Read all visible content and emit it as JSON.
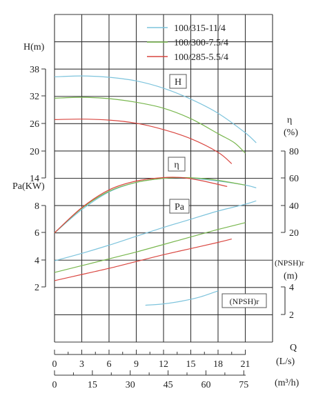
{
  "chart_data": {
    "type": "line",
    "legend": {
      "placement": "top-right",
      "entries": [
        {
          "name": "100/315-11/4",
          "color": "#7cc3dc"
        },
        {
          "name": "100/300-7.5/4",
          "color": "#77b64c"
        },
        {
          "name": "100/285-5.5/4",
          "color": "#d9453f"
        }
      ]
    },
    "grid": true,
    "x_axis": {
      "q_label": "Q",
      "ls_unit": "(L/s)",
      "m3h_unit": "(m³/h)",
      "ls_range": [
        0,
        22.5
      ],
      "ls_ticks": [
        "0",
        "3",
        "6",
        "9",
        "12",
        "15",
        "18",
        "21"
      ],
      "m3h_ticks": [
        "0",
        "15",
        "30",
        "45",
        "60",
        "75"
      ]
    },
    "head_axis": {
      "label": "H(m)",
      "ticks": [
        "38",
        "32",
        "26",
        "20",
        "14"
      ],
      "range": [
        14,
        38
      ]
    },
    "power_axis": {
      "label": "Pa(KW)",
      "ticks": [
        "8",
        "6",
        "4",
        "2"
      ],
      "range": [
        2,
        8
      ]
    },
    "eff_axis": {
      "symbol": "η",
      "unit": "(%)",
      "ticks": [
        "80",
        "60",
        "40",
        "20"
      ],
      "range": [
        20,
        80
      ]
    },
    "npsh_axis": {
      "label": "(NPSH)r",
      "unit": "(m)",
      "ticks": [
        "4",
        "2"
      ],
      "range": [
        2,
        4
      ]
    },
    "curve_labels": {
      "head": "H",
      "efficiency": "η",
      "power": "Pa",
      "npsh": "(NPSH)r"
    },
    "series": [
      {
        "name": "100/315-11/4",
        "color": "#7cc3dc",
        "head": [
          [
            0,
            36.3
          ],
          [
            3,
            36.5
          ],
          [
            6,
            36.2
          ],
          [
            9,
            35.4
          ],
          [
            12,
            33.8
          ],
          [
            15,
            31.4
          ],
          [
            18,
            28.3
          ],
          [
            21,
            24.0
          ],
          [
            22.2,
            21.8
          ]
        ],
        "efficiency": [
          [
            0,
            20
          ],
          [
            3,
            37
          ],
          [
            6,
            50
          ],
          [
            9,
            57
          ],
          [
            12,
            60
          ],
          [
            13.5,
            60.5
          ],
          [
            15,
            60
          ],
          [
            18,
            58
          ],
          [
            21,
            55
          ],
          [
            22.2,
            53
          ]
        ],
        "power": [
          [
            0,
            3.95
          ],
          [
            3,
            4.5
          ],
          [
            6,
            5.1
          ],
          [
            9,
            5.75
          ],
          [
            12,
            6.4
          ],
          [
            15,
            7.0
          ],
          [
            18,
            7.6
          ],
          [
            21,
            8.1
          ],
          [
            22.2,
            8.35
          ]
        ],
        "npsh": [
          [
            10,
            2.7
          ],
          [
            12,
            2.8
          ],
          [
            14,
            3.0
          ],
          [
            16,
            3.3
          ],
          [
            18,
            3.75
          ]
        ]
      },
      {
        "name": "100/300-7.5/4",
        "color": "#77b64c",
        "head": [
          [
            0,
            31.6
          ],
          [
            3,
            31.8
          ],
          [
            6,
            31.5
          ],
          [
            9,
            30.7
          ],
          [
            12,
            29.4
          ],
          [
            15,
            27.1
          ],
          [
            18,
            23.8
          ],
          [
            19.8,
            21.8
          ],
          [
            21,
            19.5
          ]
        ],
        "efficiency": [
          [
            0,
            20
          ],
          [
            3,
            38
          ],
          [
            6,
            50.5
          ],
          [
            9,
            57
          ],
          [
            12,
            60
          ],
          [
            14,
            60.5
          ],
          [
            16,
            60
          ],
          [
            18,
            58.5
          ],
          [
            21,
            55
          ]
        ],
        "power": [
          [
            0,
            3.1
          ],
          [
            3,
            3.6
          ],
          [
            6,
            4.1
          ],
          [
            9,
            4.6
          ],
          [
            12,
            5.15
          ],
          [
            15,
            5.7
          ],
          [
            18,
            6.25
          ],
          [
            21,
            6.75
          ]
        ],
        "npsh": []
      },
      {
        "name": "100/285-5.5/4",
        "color": "#d9453f",
        "head": [
          [
            0,
            26.9
          ],
          [
            3,
            27.0
          ],
          [
            6,
            26.8
          ],
          [
            9,
            26.1
          ],
          [
            12,
            24.7
          ],
          [
            15,
            22.7
          ],
          [
            18,
            19.7
          ],
          [
            19.5,
            17.2
          ]
        ],
        "efficiency": [
          [
            0,
            20
          ],
          [
            3,
            38.5
          ],
          [
            6,
            51.5
          ],
          [
            9,
            58
          ],
          [
            12,
            60.5
          ],
          [
            14,
            60.5
          ],
          [
            16,
            58.5
          ],
          [
            19,
            54
          ]
        ],
        "power": [
          [
            0,
            2.5
          ],
          [
            3,
            2.95
          ],
          [
            6,
            3.4
          ],
          [
            9,
            3.9
          ],
          [
            12,
            4.4
          ],
          [
            15,
            4.85
          ],
          [
            18,
            5.3
          ],
          [
            19.5,
            5.55
          ]
        ],
        "npsh": []
      }
    ]
  }
}
